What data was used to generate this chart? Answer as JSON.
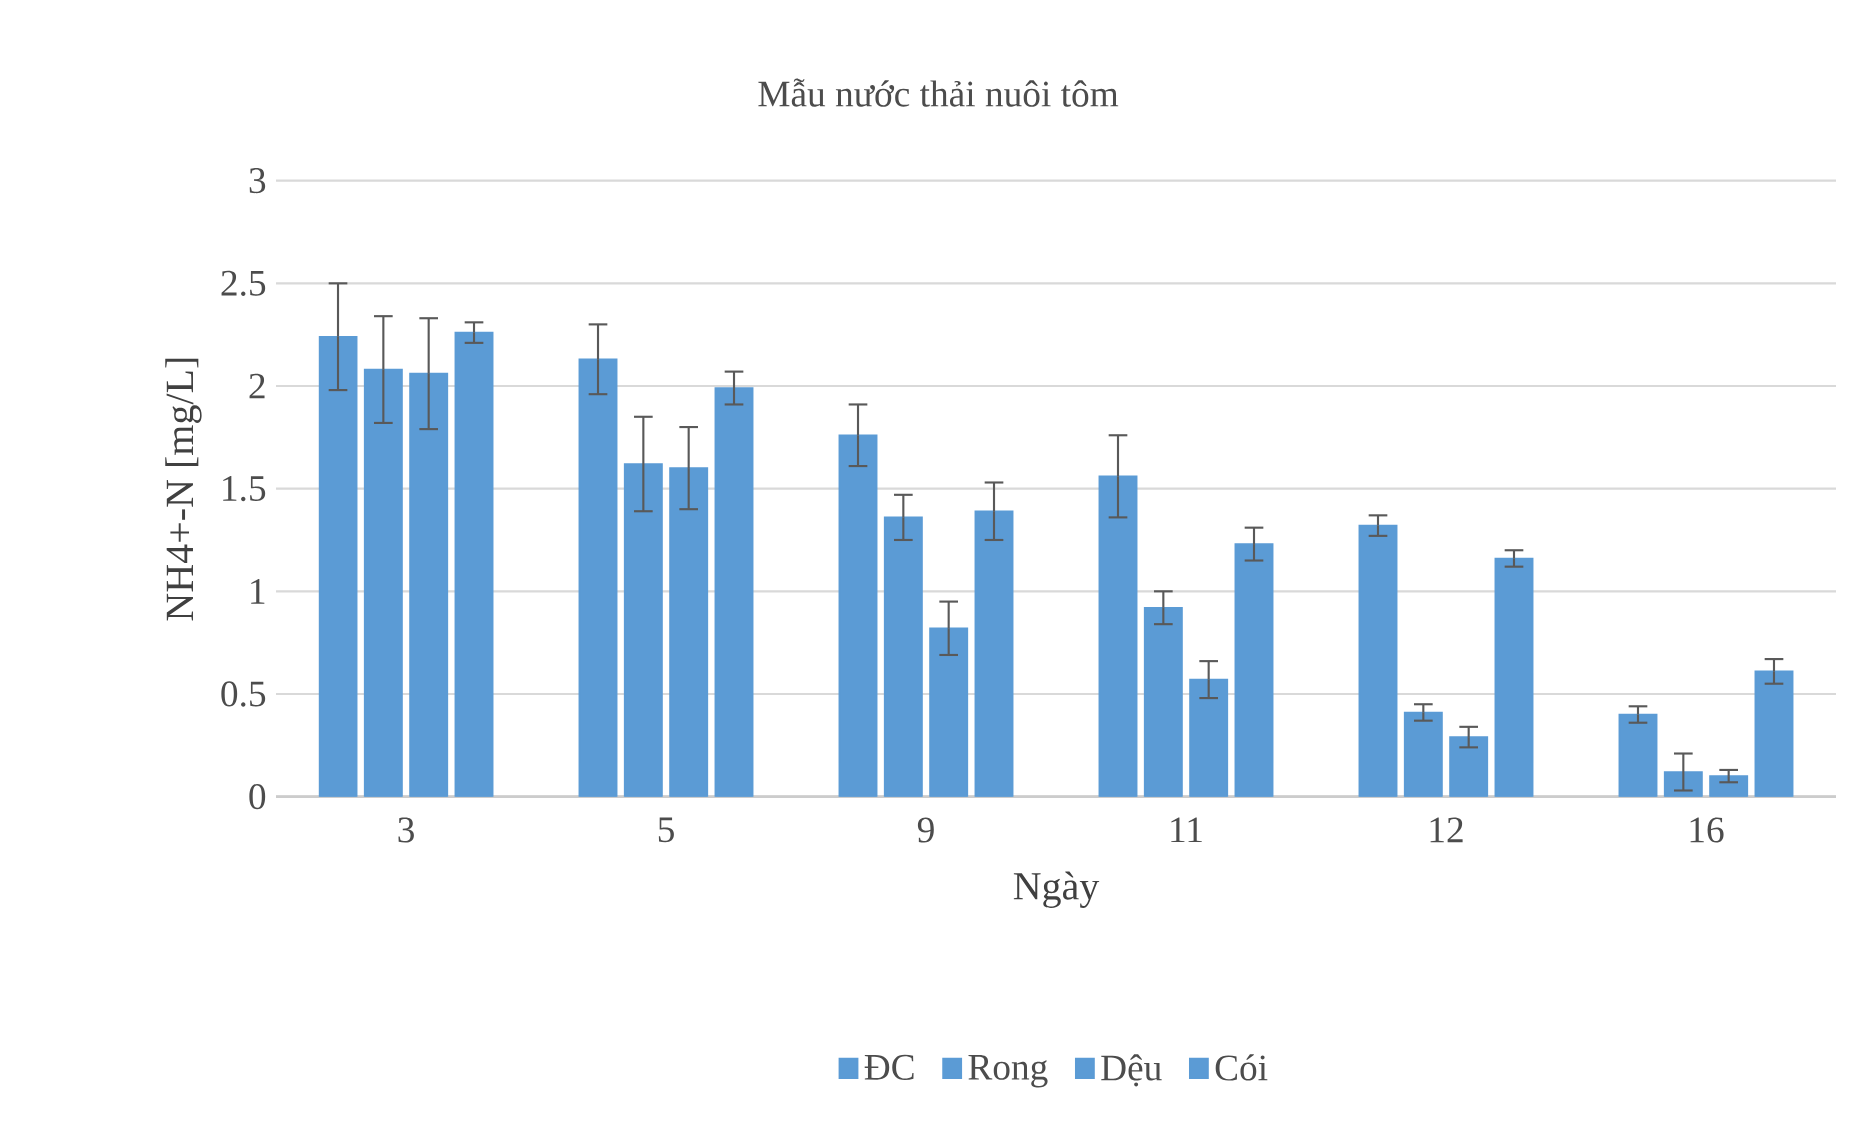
{
  "chart_data": {
    "type": "bar",
    "title": "Mẫu nước thải nuôi tôm",
    "xlabel": "Ngày",
    "ylabel": "NH4+-N [mg/L]",
    "categories": [
      "3",
      "5",
      "9",
      "11",
      "12",
      "16"
    ],
    "series": [
      {
        "name": "ĐC",
        "color": "#5b9bd5",
        "values": [
          2.24,
          2.13,
          1.76,
          1.56,
          1.32,
          0.4
        ],
        "errors": [
          0.26,
          0.17,
          0.15,
          0.2,
          0.05,
          0.04
        ]
      },
      {
        "name": "Rong",
        "color": "#5b9bd5",
        "values": [
          2.08,
          1.62,
          1.36,
          0.92,
          0.41,
          0.12
        ],
        "errors": [
          0.26,
          0.23,
          0.11,
          0.08,
          0.04,
          0.09
        ]
      },
      {
        "name": "Dệu",
        "color": "#5b9bd5",
        "values": [
          2.06,
          1.6,
          0.82,
          0.57,
          0.29,
          0.1
        ],
        "errors": [
          0.27,
          0.2,
          0.13,
          0.09,
          0.05,
          0.03
        ]
      },
      {
        "name": "Cói",
        "color": "#5b9bd5",
        "values": [
          2.26,
          1.99,
          1.39,
          1.23,
          1.16,
          0.61
        ],
        "errors": [
          0.05,
          0.08,
          0.14,
          0.08,
          0.04,
          0.06
        ]
      }
    ],
    "ylim": [
      0,
      3
    ],
    "yticks": [
      0,
      0.5,
      1,
      1.5,
      2,
      2.5,
      3
    ],
    "grid": "y",
    "legend": "bottom"
  }
}
